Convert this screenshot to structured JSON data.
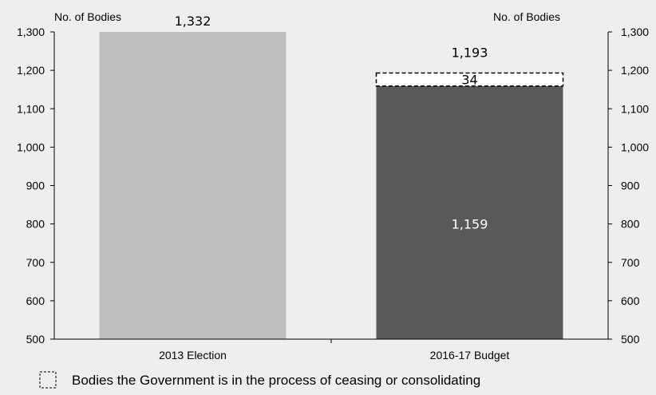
{
  "chart_data": {
    "type": "bar",
    "title": "",
    "y_axis_title_left": "No. of  Bodies",
    "y_axis_title_right": "No. of  Bodies",
    "ylim": [
      500,
      1300
    ],
    "yticks": [
      500,
      600,
      700,
      800,
      900,
      1000,
      1100,
      1200,
      1300
    ],
    "ytick_labels": [
      "500",
      "600",
      "700",
      "800",
      "900",
      "1,000",
      "1,100",
      "1,200",
      "1,300"
    ],
    "categories": [
      "2013 Election",
      "2016-17 Budget"
    ],
    "series": [
      {
        "values": [
          1332,
          1159
        ],
        "value_labels": [
          "1,332",
          "1,159"
        ],
        "colors": [
          "#bfbfbf",
          "#595959"
        ]
      },
      {
        "name": "Bodies the Government is in the process of ceasing or consolidating",
        "values": [
          null,
          34
        ],
        "value_labels": [
          "",
          "34"
        ],
        "style": "dashed-outline"
      }
    ],
    "totals": [
      "",
      "1,193"
    ],
    "legend": {
      "position": "bottom",
      "label": "Bodies the Government is in the process of ceasing or consolidating"
    },
    "grid": false
  }
}
